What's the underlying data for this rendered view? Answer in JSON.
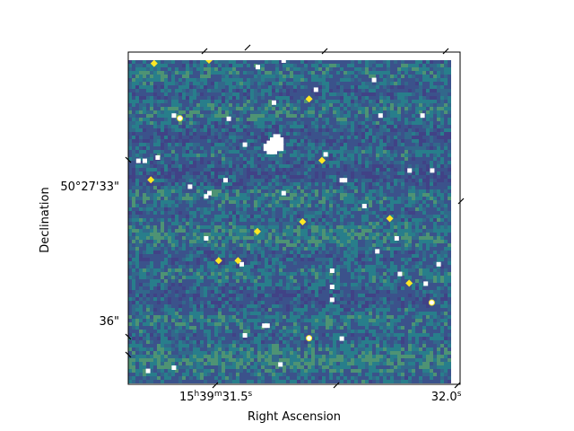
{
  "chart_data": {
    "type": "heatmap",
    "title": "",
    "xlabel": "Right Ascension",
    "ylabel": "Declination",
    "x_ticks": [
      {
        "label_main": "15",
        "sup1": "h",
        "mid": "39",
        "sup2": "m",
        "sec": "31.5",
        "sup3": "s",
        "ra_sec": 31.5
      },
      {
        "label_main": "",
        "sup1": "",
        "mid": "",
        "sup2": "",
        "sec": "32.0",
        "sup3": "s",
        "ra_sec": 32.0
      }
    ],
    "y_ticks": [
      {
        "label": "50°27'33\"",
        "dec_sec": 33
      },
      {
        "label": "36\"",
        "dec_sec": 36
      }
    ],
    "ra_range_sec": [
      31.31,
      32.03
    ],
    "dec_range_arcsec": [
      30.0,
      37.4
    ],
    "colormap": "viridis",
    "colors": {
      "low": "#3b528b",
      "mid": "#21918c",
      "high": "#5ec962",
      "saturated": "#fde725",
      "masked": "#ffffff"
    },
    "grid": false,
    "legend": "none",
    "noise_seed": 7,
    "noise_levels": [
      0.04,
      0.25
    ],
    "masked_pixels": [
      [
        0.4,
        0.02
      ],
      [
        0.48,
        0.0
      ],
      [
        0.14,
        0.17
      ],
      [
        0.31,
        0.18
      ],
      [
        0.36,
        0.26
      ],
      [
        0.45,
        0.13
      ],
      [
        0.61,
        0.29
      ],
      [
        0.78,
        0.17
      ],
      [
        0.91,
        0.17
      ],
      [
        0.76,
        0.06
      ],
      [
        0.58,
        0.09
      ],
      [
        0.03,
        0.31
      ],
      [
        0.05,
        0.31
      ],
      [
        0.09,
        0.3
      ],
      [
        0.19,
        0.39
      ],
      [
        0.25,
        0.41
      ],
      [
        0.3,
        0.37
      ],
      [
        0.24,
        0.42
      ],
      [
        0.48,
        0.41
      ],
      [
        0.66,
        0.37
      ],
      [
        0.67,
        0.37
      ],
      [
        0.73,
        0.45
      ],
      [
        0.87,
        0.34
      ],
      [
        0.24,
        0.55
      ],
      [
        0.77,
        0.59
      ],
      [
        0.83,
        0.55
      ],
      [
        0.35,
        0.63
      ],
      [
        0.63,
        0.65
      ],
      [
        0.84,
        0.66
      ],
      [
        0.96,
        0.63
      ],
      [
        0.63,
        0.7
      ],
      [
        0.63,
        0.74
      ],
      [
        0.92,
        0.69
      ],
      [
        0.42,
        0.82
      ],
      [
        0.43,
        0.82
      ],
      [
        0.36,
        0.85
      ],
      [
        0.66,
        0.86
      ],
      [
        0.14,
        0.95
      ],
      [
        0.47,
        0.94
      ],
      [
        0.94,
        0.34
      ],
      [
        0.06,
        0.96
      ]
    ],
    "blob": [
      [
        0.44,
        0.26
      ],
      [
        0.45,
        0.25
      ],
      [
        0.46,
        0.25
      ],
      [
        0.47,
        0.25
      ],
      [
        0.45,
        0.27
      ],
      [
        0.46,
        0.27
      ],
      [
        0.47,
        0.27
      ],
      [
        0.43,
        0.27
      ],
      [
        0.44,
        0.28
      ],
      [
        0.46,
        0.24
      ],
      [
        0.45,
        0.28
      ]
    ],
    "bright_sources": [
      [
        0.08,
        0.01
      ],
      [
        0.25,
        0.0
      ],
      [
        0.56,
        0.12
      ],
      [
        0.81,
        0.49
      ],
      [
        0.54,
        0.5
      ],
      [
        0.4,
        0.53
      ],
      [
        0.28,
        0.62
      ],
      [
        0.34,
        0.62
      ],
      [
        0.07,
        0.37
      ],
      [
        0.87,
        0.69
      ],
      [
        0.6,
        0.31
      ]
    ],
    "hollow_sources": [
      [
        0.94,
        0.75
      ],
      [
        0.56,
        0.86
      ],
      [
        0.16,
        0.18
      ]
    ]
  }
}
